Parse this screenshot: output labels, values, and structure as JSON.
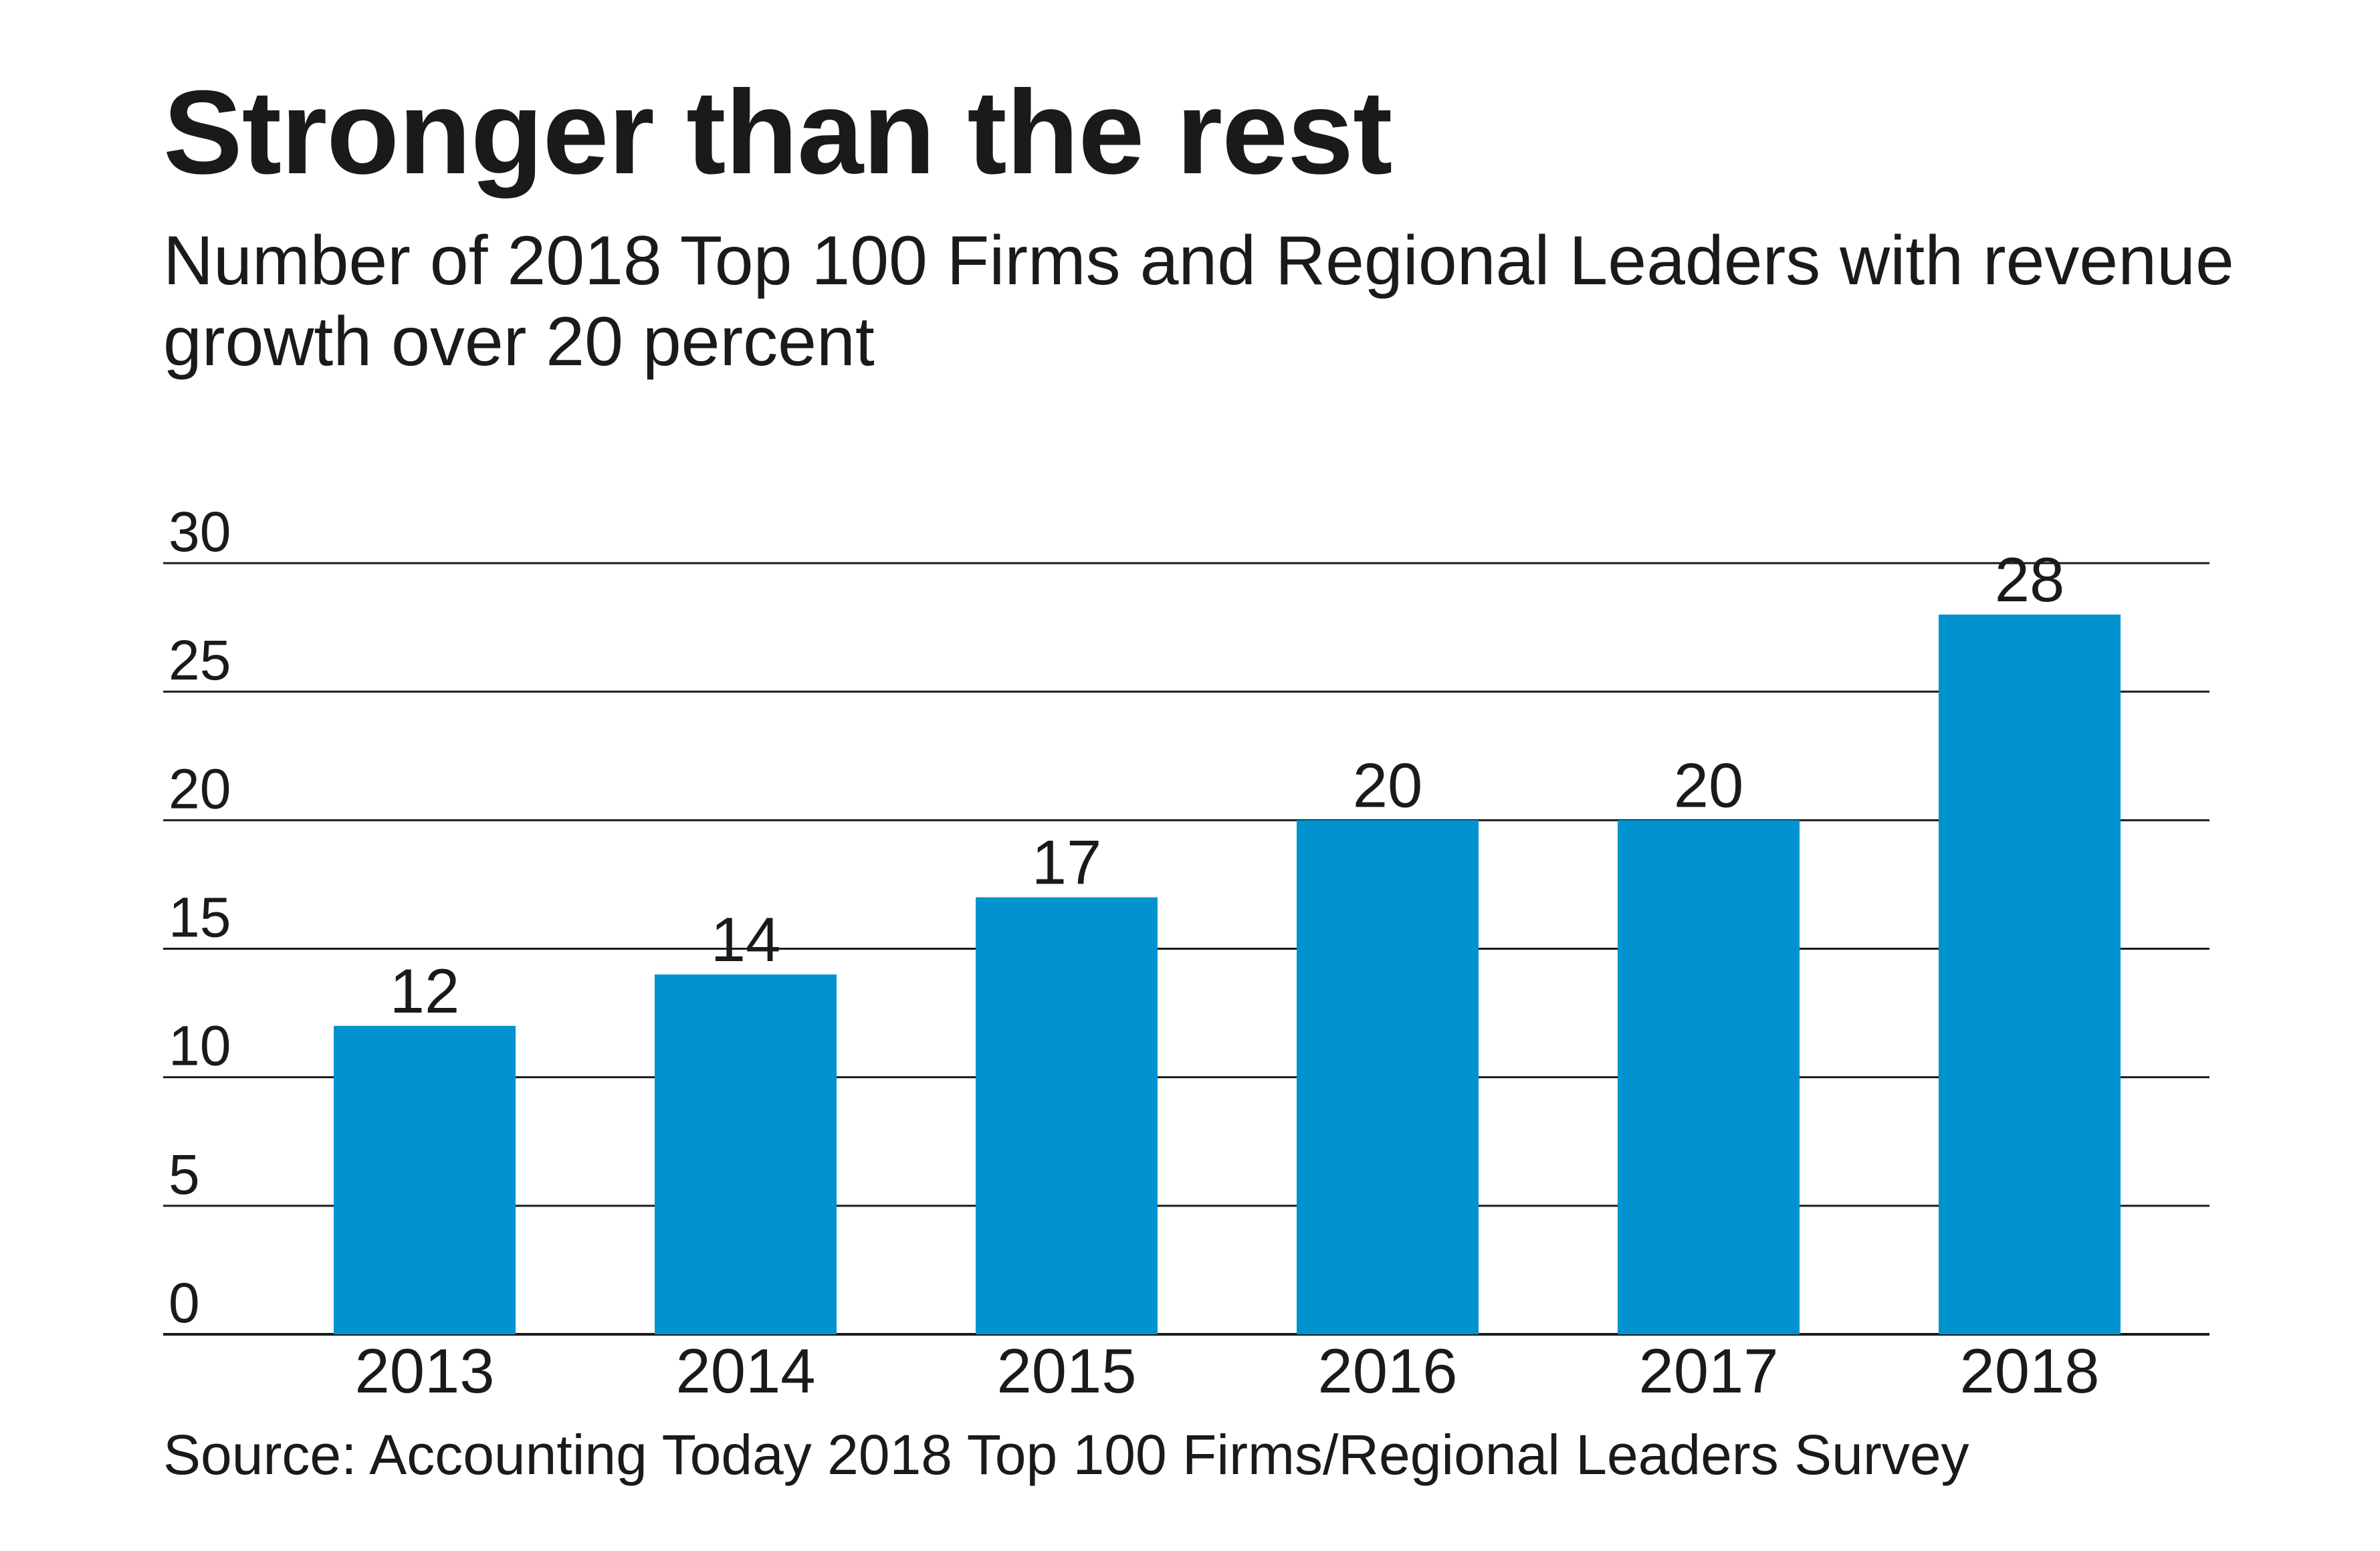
{
  "title": "Stronger than the rest",
  "subtitle": "Number of 2018 Top 100 Firms and Regional Leaders with revenue growth over 20 percent",
  "source": "Source: Accounting Today 2018 Top 100 Firms/Regional Leaders Survey",
  "colors": {
    "bar": "#0093d0",
    "grid": "#1a1a1a",
    "text": "#1a1a1a"
  },
  "chart_data": {
    "type": "bar",
    "categories": [
      "2013",
      "2014",
      "2015",
      "2016",
      "2017",
      "2018"
    ],
    "values": [
      12,
      14,
      17,
      20,
      20,
      28
    ],
    "data_labels": [
      "12",
      "14",
      "17",
      "20",
      "20",
      "28"
    ],
    "y_ticks": [
      0,
      5,
      10,
      15,
      20,
      25,
      30
    ],
    "y_tick_labels": [
      "0",
      "5",
      "10",
      "15",
      "20",
      "25",
      "30"
    ],
    "ylim": [
      0,
      30
    ],
    "title": "Stronger than the rest",
    "subtitle": "Number of 2018 Top 100 Firms and Regional Leaders with revenue growth over 20 percent",
    "xlabel": "",
    "ylabel": "",
    "grid": true,
    "legend": "none"
  }
}
